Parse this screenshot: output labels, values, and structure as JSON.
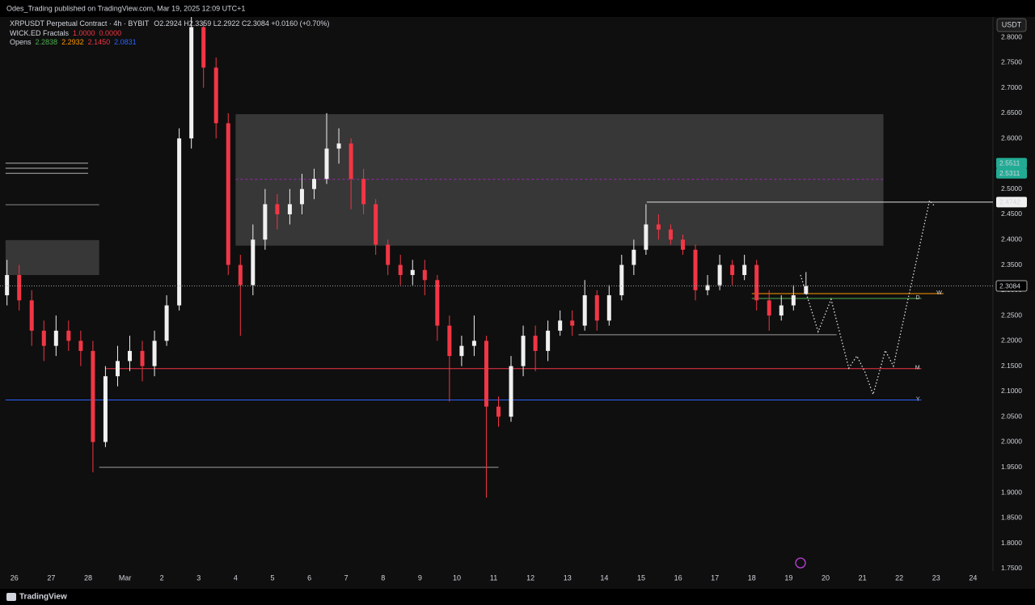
{
  "header": {
    "publisher": "Odes_Trading published on TradingView.com, Mar 19, 2025 12:09 UTC+1",
    "footer": "TradingView",
    "currency": "USDT"
  },
  "chart_data": {
    "type": "candlestick",
    "symbol": "XRPUSDT Perpetual Contract · 4h · BYBIT",
    "ohlc_text": "O2.2924 H2.3359 L2.2922 C2.3084 +0.0160 (+0.70%)",
    "fractals_legend": {
      "label": "WICK.ED Fractals",
      "values": [
        "1.0000",
        "0.0000"
      ],
      "colors": [
        "#f23645",
        "#f23645"
      ]
    },
    "opens_legend": {
      "label": "Opens",
      "values": [
        "2.2838",
        "2.2932",
        "2.1450",
        "2.0831"
      ],
      "colors": [
        "#4caf50",
        "#ff9800",
        "#f23645",
        "#2962ff"
      ]
    },
    "up_color": "#f0f0f0",
    "down_color": "#f23645",
    "x": [
      -0.2,
      0.13,
      0.47,
      0.8,
      1.13,
      1.47,
      1.8,
      2.13,
      2.47,
      2.8,
      3.13,
      3.47,
      3.8,
      4.13,
      4.47,
      4.8,
      5.13,
      5.47,
      5.8,
      6.13,
      6.47,
      6.8,
      7.13,
      7.47,
      7.8,
      8.13,
      8.47,
      8.8,
      9.13,
      9.47,
      9.8,
      10.13,
      10.47,
      10.8,
      11.13,
      11.47,
      11.8,
      12.13,
      12.47,
      12.8,
      13.13,
      13.47,
      13.8,
      14.13,
      14.47,
      14.8,
      15.13,
      15.47,
      15.8,
      16.13,
      16.47,
      16.8,
      17.13,
      17.47,
      17.8,
      18.13,
      18.47,
      18.8,
      19.13,
      19.47,
      19.8,
      20.13,
      20.47,
      20.8,
      21.13,
      21.47
    ],
    "open": [
      2.29,
      2.33,
      2.28,
      2.22,
      2.19,
      2.22,
      2.2,
      2.18,
      2.0,
      2.13,
      2.16,
      2.18,
      2.15,
      2.2,
      2.27,
      2.6,
      2.82,
      2.74,
      2.63,
      2.35,
      2.31,
      2.4,
      2.47,
      2.45,
      2.47,
      2.5,
      2.52,
      2.58,
      2.59,
      2.52,
      2.47,
      2.39,
      2.35,
      2.33,
      2.34,
      2.32,
      2.23,
      2.17,
      2.19,
      2.2,
      2.07,
      2.05,
      2.15,
      2.21,
      2.18,
      2.22,
      2.24,
      2.23,
      2.29,
      2.24,
      2.29,
      2.35,
      2.38,
      2.43,
      2.42,
      2.4,
      2.38,
      2.3,
      2.31,
      2.35,
      2.33,
      2.35,
      2.28,
      2.25,
      2.27,
      2.2924
    ],
    "high": [
      2.36,
      2.35,
      2.3,
      2.24,
      2.25,
      2.24,
      2.22,
      2.2,
      2.15,
      2.19,
      2.21,
      2.2,
      2.22,
      2.29,
      2.62,
      2.84,
      2.83,
      2.76,
      2.65,
      2.37,
      2.43,
      2.5,
      2.49,
      2.5,
      2.53,
      2.54,
      2.65,
      2.62,
      2.6,
      2.54,
      2.48,
      2.4,
      2.37,
      2.36,
      2.36,
      2.33,
      2.25,
      2.21,
      2.25,
      2.21,
      2.09,
      2.17,
      2.23,
      2.23,
      2.24,
      2.26,
      2.26,
      2.32,
      2.3,
      2.31,
      2.37,
      2.4,
      2.47,
      2.45,
      2.43,
      2.41,
      2.39,
      2.33,
      2.37,
      2.36,
      2.37,
      2.36,
      2.3,
      2.29,
      2.31,
      2.3359
    ],
    "low": [
      2.27,
      2.26,
      2.19,
      2.16,
      2.17,
      2.18,
      2.15,
      1.94,
      1.99,
      2.11,
      2.14,
      2.12,
      2.13,
      2.19,
      2.26,
      2.58,
      2.7,
      2.6,
      2.33,
      2.21,
      2.29,
      2.38,
      2.42,
      2.43,
      2.45,
      2.48,
      2.51,
      2.55,
      2.46,
      2.45,
      2.37,
      2.33,
      2.31,
      2.31,
      2.29,
      2.2,
      2.08,
      2.15,
      2.17,
      1.89,
      2.03,
      2.04,
      2.13,
      2.14,
      2.16,
      2.21,
      2.21,
      2.22,
      2.22,
      2.23,
      2.28,
      2.33,
      2.37,
      2.4,
      2.39,
      2.37,
      2.28,
      2.29,
      2.3,
      2.31,
      2.32,
      2.26,
      2.22,
      2.24,
      2.26,
      2.2922
    ],
    "close": [
      2.33,
      2.28,
      2.22,
      2.19,
      2.22,
      2.2,
      2.18,
      2.0,
      2.13,
      2.16,
      2.18,
      2.15,
      2.2,
      2.27,
      2.6,
      2.82,
      2.74,
      2.63,
      2.35,
      2.31,
      2.4,
      2.47,
      2.45,
      2.47,
      2.5,
      2.52,
      2.58,
      2.59,
      2.52,
      2.47,
      2.39,
      2.35,
      2.33,
      2.34,
      2.32,
      2.23,
      2.17,
      2.19,
      2.2,
      2.07,
      2.05,
      2.15,
      2.21,
      2.18,
      2.22,
      2.24,
      2.23,
      2.29,
      2.24,
      2.29,
      2.35,
      2.38,
      2.43,
      2.42,
      2.4,
      2.38,
      2.3,
      2.31,
      2.35,
      2.33,
      2.35,
      2.28,
      2.25,
      2.27,
      2.29,
      2.3084
    ],
    "zones": [
      {
        "x0": 6.0,
        "x1": 23.57,
        "low": 2.388,
        "high": 2.648,
        "color": "#5a5a5a"
      },
      {
        "x0": -0.24,
        "x1": 2.3,
        "low": 2.33,
        "high": 2.399,
        "color": "#5a5a5a"
      }
    ],
    "levels": [
      {
        "price": 2.4742,
        "x0": 17.15,
        "x1": 26.54,
        "color": "#e0e0e0"
      },
      {
        "price": 2.145,
        "x0": 2.46,
        "x1": 24.6,
        "color": "#f23645",
        "tag": "M"
      },
      {
        "price": 2.0831,
        "x0": -0.24,
        "x1": 24.6,
        "color": "#2962ff",
        "tag": "Y"
      },
      {
        "price": 2.2932,
        "x0": 20.0,
        "x1": 25.2,
        "color": "#ff9800",
        "tag": "W"
      },
      {
        "price": 2.2838,
        "x0": 20.0,
        "x1": 24.6,
        "color": "#4caf50",
        "tag": "D"
      },
      {
        "price": 1.95,
        "x0": 2.3,
        "x1": 13.13,
        "color": "#9e9e9e"
      },
      {
        "price": 2.212,
        "x0": 15.3,
        "x1": 22.3,
        "color": "#9e9e9e"
      },
      {
        "price": 2.551,
        "x0": -0.24,
        "x1": 2.0,
        "color": "#b0b0b0"
      },
      {
        "price": 2.541,
        "x0": -0.24,
        "x1": 2.0,
        "color": "#b0b0b0"
      },
      {
        "price": 2.531,
        "x0": -0.24,
        "x1": 2.0,
        "color": "#b0b0b0"
      },
      {
        "price": 2.469,
        "x0": -0.24,
        "x1": 2.3,
        "color": "#8a8a8a"
      },
      {
        "price": 2.519,
        "x0": 6.0,
        "x1": 23.57,
        "color": "#9c27b0",
        "dashed": true
      }
    ],
    "projection": {
      "x": [
        21.32,
        21.8,
        22.15,
        22.63,
        22.85,
        23.07,
        23.29,
        23.62,
        23.84,
        24.82,
        24.96
      ],
      "y": [
        2.33,
        2.218,
        2.282,
        2.146,
        2.17,
        2.138,
        2.094,
        2.181,
        2.15,
        2.477,
        2.466
      ]
    },
    "price_labels": [
      {
        "value": 2.5511,
        "style": "green"
      },
      {
        "value": 2.5311,
        "style": "green"
      },
      {
        "value": 2.4742,
        "style": "white"
      },
      {
        "value": 2.3084,
        "style": "last"
      }
    ],
    "xlim": [
      -0.39,
      26.54
    ],
    "ylim": [
      1.745,
      2.84
    ],
    "grid": false,
    "xticks": [
      {
        "value": 0,
        "label": "26"
      },
      {
        "value": 1,
        "label": "27"
      },
      {
        "value": 2,
        "label": "28"
      },
      {
        "value": 3,
        "label": "Mar"
      },
      {
        "value": 4,
        "label": "2"
      },
      {
        "value": 5,
        "label": "3"
      },
      {
        "value": 6,
        "label": "4"
      },
      {
        "value": 7,
        "label": "5"
      },
      {
        "value": 8,
        "label": "6"
      },
      {
        "value": 9,
        "label": "7"
      },
      {
        "value": 10,
        "label": "8"
      },
      {
        "value": 11,
        "label": "9"
      },
      {
        "value": 12,
        "label": "10"
      },
      {
        "value": 13,
        "label": "11"
      },
      {
        "value": 14,
        "label": "12"
      },
      {
        "value": 15,
        "label": "13"
      },
      {
        "value": 16,
        "label": "14"
      },
      {
        "value": 17,
        "label": "15"
      },
      {
        "value": 18,
        "label": "16"
      },
      {
        "value": 19,
        "label": "17"
      },
      {
        "value": 20,
        "label": "18"
      },
      {
        "value": 21,
        "label": "19"
      },
      {
        "value": 22,
        "label": "20"
      },
      {
        "value": 23,
        "label": "21"
      },
      {
        "value": 24,
        "label": "22"
      },
      {
        "value": 25,
        "label": "23"
      },
      {
        "value": 26,
        "label": "24"
      }
    ],
    "yticks": [
      {
        "value": 2.8,
        "label": "2.8000"
      },
      {
        "value": 2.75,
        "label": "2.7500"
      },
      {
        "value": 2.7,
        "label": "2.7000"
      },
      {
        "value": 2.65,
        "label": "2.6500"
      },
      {
        "value": 2.6,
        "label": "2.6000"
      },
      {
        "value": 2.55,
        "label": "2.5500"
      },
      {
        "value": 2.5,
        "label": "2.5000"
      },
      {
        "value": 2.45,
        "label": "2.4500"
      },
      {
        "value": 2.4,
        "label": "2.4000"
      },
      {
        "value": 2.35,
        "label": "2.3500"
      },
      {
        "value": 2.3,
        "label": "2.3000"
      },
      {
        "value": 2.25,
        "label": "2.2500"
      },
      {
        "value": 2.2,
        "label": "2.2000"
      },
      {
        "value": 2.15,
        "label": "2.1500"
      },
      {
        "value": 2.1,
        "label": "2.1000"
      },
      {
        "value": 2.05,
        "label": "2.0500"
      },
      {
        "value": 2.0,
        "label": "2.0000"
      },
      {
        "value": 1.95,
        "label": "1.9500"
      },
      {
        "value": 1.9,
        "label": "1.9000"
      },
      {
        "value": 1.85,
        "label": "1.8500"
      },
      {
        "value": 1.8,
        "label": "1.8000"
      },
      {
        "value": 1.75,
        "label": "1.7500"
      }
    ]
  }
}
